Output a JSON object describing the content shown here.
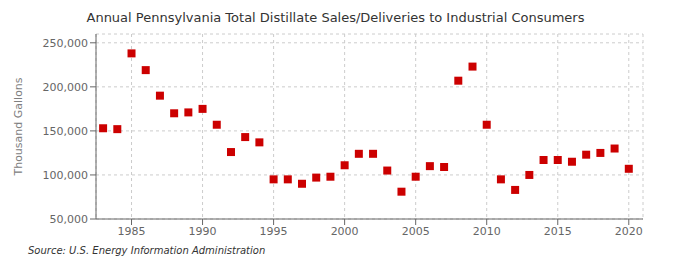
{
  "chart_data": {
    "type": "scatter",
    "title": "Annual Pennsylvania Total Distillate Sales/Deliveries to Industrial Consumers",
    "y_label": "Thousand Gallons",
    "annotations": [
      "Source: U.S. Energy Information Administration"
    ],
    "x": [
      1983,
      1984,
      1985,
      1986,
      1987,
      1988,
      1989,
      1990,
      1991,
      1992,
      1993,
      1994,
      1995,
      1996,
      1997,
      1998,
      1999,
      2000,
      2001,
      2002,
      2003,
      2004,
      2005,
      2006,
      2007,
      2008,
      2009,
      2010,
      2011,
      2012,
      2013,
      2014,
      2015,
      2016,
      2017,
      2018,
      2019,
      2020
    ],
    "values": [
      153000,
      152000,
      238000,
      219000,
      190000,
      170000,
      171000,
      175000,
      157000,
      126000,
      143000,
      137000,
      95000,
      95000,
      90000,
      97000,
      98000,
      111000,
      124000,
      124000,
      105000,
      81000,
      98000,
      110000,
      109000,
      207000,
      223000,
      157000,
      95000,
      83000,
      100000,
      117000,
      117000,
      115000,
      123000,
      125000,
      130000,
      107000
    ],
    "color": "#cc0000",
    "marker": "square",
    "xlim": [
      1982.5,
      2021
    ],
    "xticks": [
      1985,
      1990,
      1995,
      2000,
      2005,
      2010,
      2015,
      2020
    ],
    "ylim": [
      50000,
      260000
    ],
    "yticks": [
      {
        "value": 50000,
        "label": "50,000"
      },
      {
        "value": 100000,
        "label": "100,000"
      },
      {
        "value": 150000,
        "label": "150,000"
      },
      {
        "value": 200000,
        "label": "200,000"
      },
      {
        "value": 250000,
        "label": "250,000"
      }
    ],
    "grid": true
  }
}
